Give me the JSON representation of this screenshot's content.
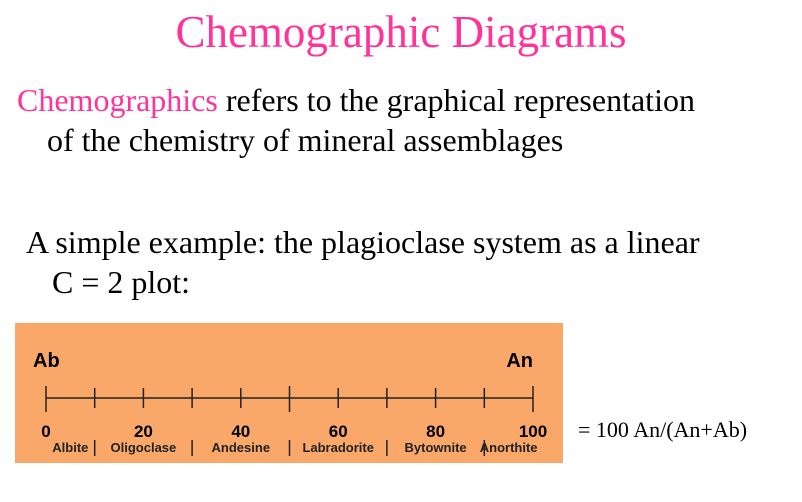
{
  "slide": {
    "title": "Chemographic Diagrams",
    "paragraph1": {
      "highlight": "Chemographics",
      "rest_line1": " refers to the graphical representation",
      "line2": "of the chemistry of mineral assemblages"
    },
    "paragraph2": {
      "line1": "A simple example: the plagioclase system as a linear",
      "line2": "C = 2 plot:"
    },
    "formula": "= 100 An/(An+Ab)"
  },
  "diagram": {
    "left_end": "Ab",
    "right_end": "An",
    "tick_labels": [
      "0",
      "20",
      "40",
      "60",
      "80",
      "100"
    ],
    "minerals": [
      "Albite",
      "Oligoclase",
      "Andesine",
      "Labradorite",
      "Bytownite",
      "Anorthite"
    ],
    "colors": {
      "background": "#f9a86a",
      "title": "#ff3399"
    }
  }
}
